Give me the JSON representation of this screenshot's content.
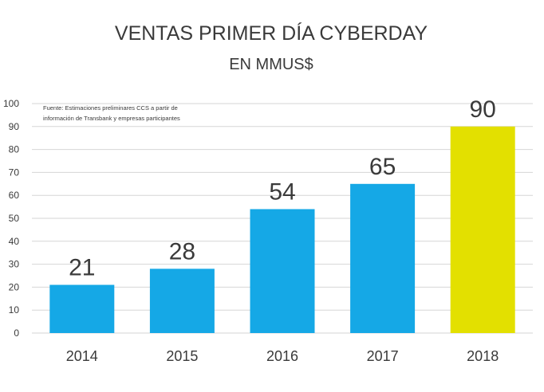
{
  "chart_data": {
    "type": "bar",
    "title": "VENTAS PRIMER DÍA CYBERDAY",
    "subtitle": "EN MMUS$",
    "source_note": [
      "Fuente: Estimaciones preliminares CCS a partir de",
      "información de Transbank y empresas participantes"
    ],
    "categories": [
      "2014",
      "2015",
      "2016",
      "2017",
      "2018"
    ],
    "values": [
      21,
      28,
      54,
      65,
      90
    ],
    "data_labels": [
      "21",
      "28",
      "54",
      "65",
      "90"
    ],
    "y_ticks": [
      "0",
      "10",
      "20",
      "30",
      "40",
      "50",
      "60",
      "70",
      "80",
      "90",
      "100"
    ],
    "ylim": [
      0,
      100
    ],
    "grid": true,
    "colors": {
      "default_bar": "#15a8e6",
      "highlight_bar": "#e3e000",
      "grid": "#d6d6d6",
      "text": "#3a3a3a"
    },
    "highlight_category": "2018"
  }
}
